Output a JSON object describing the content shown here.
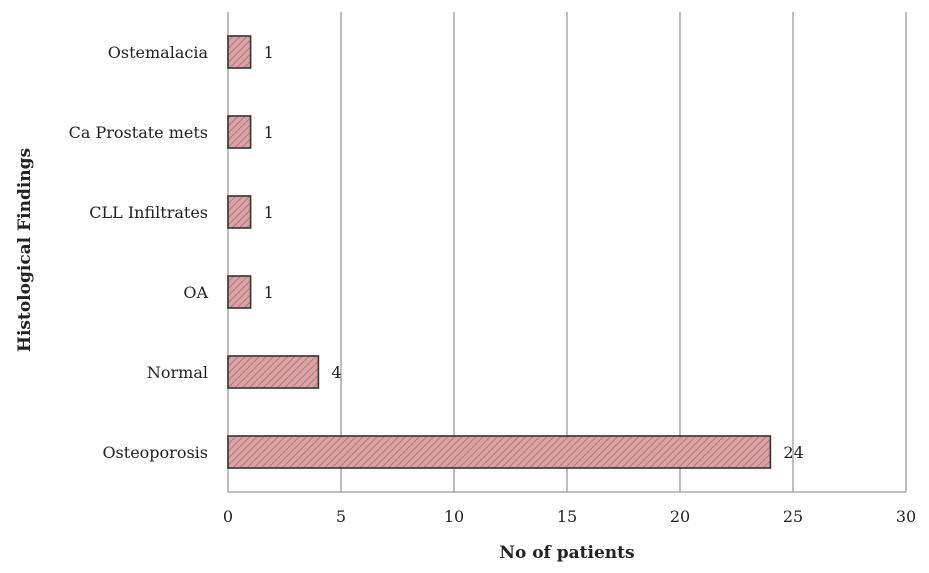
{
  "chart_data": {
    "type": "bar",
    "orientation": "horizontal",
    "categories": [
      "Ostemalacia",
      "Ca Prostate mets",
      "CLL Infiltrates",
      "OA",
      "Normal",
      "Osteoporosis"
    ],
    "values": [
      1,
      1,
      1,
      1,
      4,
      24
    ],
    "data_labels": [
      "1",
      "1",
      "1",
      "1",
      "4",
      "24"
    ],
    "xlabel": "No of patients",
    "ylabel": "Histological Findings",
    "xlim": [
      0,
      30
    ],
    "x_ticks": [
      0,
      5,
      10,
      15,
      20,
      25,
      30
    ],
    "grid": "vertical",
    "bar_fill": "#d9a3a3",
    "bar_stroke": "#333333",
    "grid_color": "#9a9a9a"
  }
}
